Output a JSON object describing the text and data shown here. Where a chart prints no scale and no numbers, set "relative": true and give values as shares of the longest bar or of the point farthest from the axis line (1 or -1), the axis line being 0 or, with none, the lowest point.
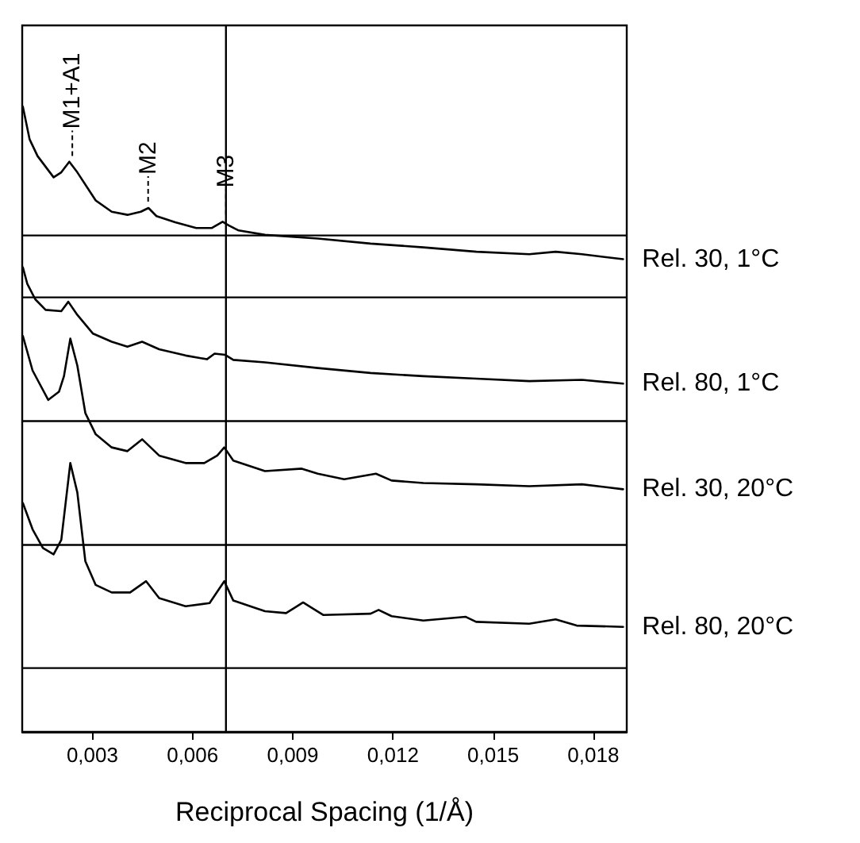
{
  "chart_data": {
    "type": "line",
    "relative": true,
    "xlabel": "Reciprocal Spacing (1/Å)",
    "xlim": [
      0.0009,
      0.019
    ],
    "xticks": [
      {
        "value": 0.003,
        "label": "0,003"
      },
      {
        "value": 0.006,
        "label": "0,006"
      },
      {
        "value": 0.009,
        "label": "0,009"
      },
      {
        "value": 0.012,
        "label": "0,012"
      },
      {
        "value": 0.015,
        "label": "0,015"
      },
      {
        "value": 0.018,
        "label": "0,018"
      }
    ],
    "grid": false,
    "legend": false,
    "marker": "none",
    "line_style": "solid",
    "series": [
      {
        "name": "Rel. 30, 1°C",
        "color": "#000000",
        "x": [
          0.00092,
          0.00112,
          0.00136,
          0.00184,
          0.00207,
          0.00231,
          0.00255,
          0.0031,
          0.00358,
          0.00405,
          0.00445,
          0.00468,
          0.00492,
          0.00548,
          0.00611,
          0.00658,
          0.0069,
          0.00709,
          0.00738,
          0.00817,
          0.00975,
          0.01133,
          0.01291,
          0.0145,
          0.01608,
          0.01687,
          0.01766,
          0.01889
        ],
        "values": [
          1.0,
          0.948,
          0.921,
          0.887,
          0.895,
          0.912,
          0.895,
          0.85,
          0.832,
          0.827,
          0.832,
          0.838,
          0.825,
          0.815,
          0.806,
          0.806,
          0.816,
          0.81,
          0.802,
          0.795,
          0.789,
          0.781,
          0.775,
          0.768,
          0.764,
          0.768,
          0.764,
          0.756
        ]
      },
      {
        "name": "Rel. 80, 1°C",
        "color": "#000000",
        "x": [
          0.00092,
          0.00105,
          0.00129,
          0.0016,
          0.00207,
          0.00228,
          0.00255,
          0.00302,
          0.00358,
          0.00405,
          0.00449,
          0.005,
          0.00579,
          0.00643,
          0.00666,
          0.00698,
          0.00722,
          0.00817,
          0.00975,
          0.01133,
          0.01291,
          0.01449,
          0.01608,
          0.01766,
          0.01889
        ],
        "values": [
          0.743,
          0.717,
          0.692,
          0.675,
          0.673,
          0.688,
          0.667,
          0.637,
          0.624,
          0.616,
          0.624,
          0.612,
          0.602,
          0.596,
          0.605,
          0.603,
          0.595,
          0.591,
          0.582,
          0.574,
          0.569,
          0.565,
          0.561,
          0.563,
          0.557
        ]
      },
      {
        "name": "Rel. 30, 20°C",
        "color": "#000000",
        "x": [
          0.00092,
          0.00121,
          0.00168,
          0.002,
          0.00215,
          0.00234,
          0.00255,
          0.00279,
          0.0031,
          0.00358,
          0.00405,
          0.00449,
          0.005,
          0.00579,
          0.00635,
          0.00674,
          0.00695,
          0.00722,
          0.00817,
          0.00927,
          0.00975,
          0.01054,
          0.01149,
          0.01196,
          0.01291,
          0.01449,
          0.01608,
          0.01766,
          0.01889
        ],
        "values": [
          0.633,
          0.578,
          0.531,
          0.544,
          0.569,
          0.629,
          0.586,
          0.51,
          0.476,
          0.455,
          0.449,
          0.468,
          0.442,
          0.43,
          0.43,
          0.442,
          0.455,
          0.434,
          0.417,
          0.421,
          0.413,
          0.404,
          0.413,
          0.402,
          0.398,
          0.396,
          0.393,
          0.396,
          0.388
        ]
      },
      {
        "name": "Rel. 80, 20°C",
        "color": "#000000",
        "x": [
          0.00092,
          0.00121,
          0.00152,
          0.00184,
          0.00207,
          0.00234,
          0.00255,
          0.00279,
          0.0031,
          0.00358,
          0.00413,
          0.00461,
          0.005,
          0.00579,
          0.00651,
          0.00695,
          0.00722,
          0.00817,
          0.0088,
          0.00931,
          0.00991,
          0.01133,
          0.01157,
          0.01196,
          0.01291,
          0.01418,
          0.01449,
          0.01608,
          0.01687,
          0.0175,
          0.01889
        ],
        "values": [
          0.366,
          0.324,
          0.294,
          0.284,
          0.307,
          0.43,
          0.383,
          0.273,
          0.235,
          0.223,
          0.223,
          0.241,
          0.214,
          0.201,
          0.206,
          0.241,
          0.21,
          0.193,
          0.19,
          0.207,
          0.187,
          0.189,
          0.195,
          0.185,
          0.178,
          0.184,
          0.176,
          0.173,
          0.18,
          0.17,
          0.168
        ]
      }
    ],
    "ref_lines": [
      {
        "axis": "y",
        "value": 0.794
      },
      {
        "axis": "y",
        "value": 0.695
      },
      {
        "axis": "y",
        "value": 0.497
      },
      {
        "axis": "y",
        "value": 0.299
      },
      {
        "axis": "y",
        "value": 0.102
      },
      {
        "axis": "x",
        "value": 0.007
      }
    ],
    "annotations": [
      {
        "text": "M1+A1",
        "x": 0.0024,
        "y": 0.911
      },
      {
        "text": "M2",
        "x": 0.00467,
        "y": 0.838
      },
      {
        "text": "M3",
        "x": 0.007,
        "y": 0.817
      }
    ]
  }
}
